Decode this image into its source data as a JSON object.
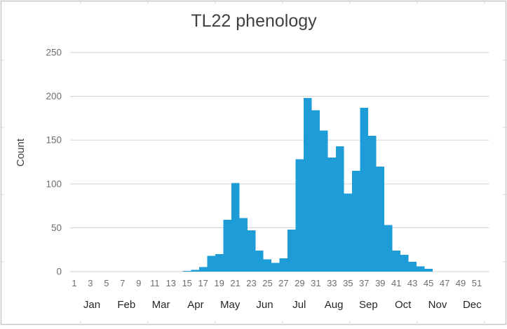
{
  "window": {
    "background": "#ffffff",
    "frame_border_color": "#c8c8c8",
    "worksheet_gridline_color": "#d9d9d9"
  },
  "chart_data": {
    "type": "bar",
    "title": "TL22 phenology",
    "xlabel": "",
    "ylabel": "Count",
    "x_unit": "week-of-year",
    "x": [
      1,
      2,
      3,
      4,
      5,
      6,
      7,
      8,
      9,
      10,
      11,
      12,
      13,
      14,
      15,
      16,
      17,
      18,
      19,
      20,
      21,
      22,
      23,
      24,
      25,
      26,
      27,
      28,
      29,
      30,
      31,
      32,
      33,
      34,
      35,
      36,
      37,
      38,
      39,
      40,
      41,
      42,
      43,
      44,
      45,
      46,
      47,
      48,
      49,
      50,
      51,
      52
    ],
    "values": [
      0,
      0,
      0,
      0,
      0,
      0,
      0,
      0,
      0,
      0,
      0,
      0,
      0,
      0,
      1,
      2,
      5,
      18,
      20,
      59,
      101,
      61,
      47,
      24,
      14,
      10,
      15,
      48,
      128,
      198,
      184,
      161,
      130,
      143,
      89,
      115,
      187,
      155,
      120,
      53,
      24,
      19,
      11,
      6,
      3,
      0,
      0,
      0,
      0,
      0,
      0,
      0
    ],
    "x_tick_labels": [
      "1",
      "3",
      "5",
      "7",
      "9",
      "11",
      "13",
      "15",
      "17",
      "19",
      "21",
      "23",
      "25",
      "27",
      "29",
      "31",
      "33",
      "35",
      "37",
      "39",
      "41",
      "43",
      "45",
      "47",
      "49",
      "51"
    ],
    "month_labels": [
      "Jan",
      "Feb",
      "Mar",
      "Apr",
      "May",
      "Jun",
      "Jul",
      "Aug",
      "Sep",
      "Oct",
      "Nov",
      "Dec"
    ],
    "y_ticks": [
      0,
      50,
      100,
      150,
      200,
      250
    ],
    "ylim": [
      0,
      250
    ],
    "grid": true,
    "legend_position": "none",
    "bar_color": "#1e9cd8",
    "gridline_color": "#d9d9d9",
    "title_color": "#404040",
    "axis_label_color": "#404040",
    "tick_label_color": "#6e6e6e",
    "month_label_color": "#262626"
  }
}
